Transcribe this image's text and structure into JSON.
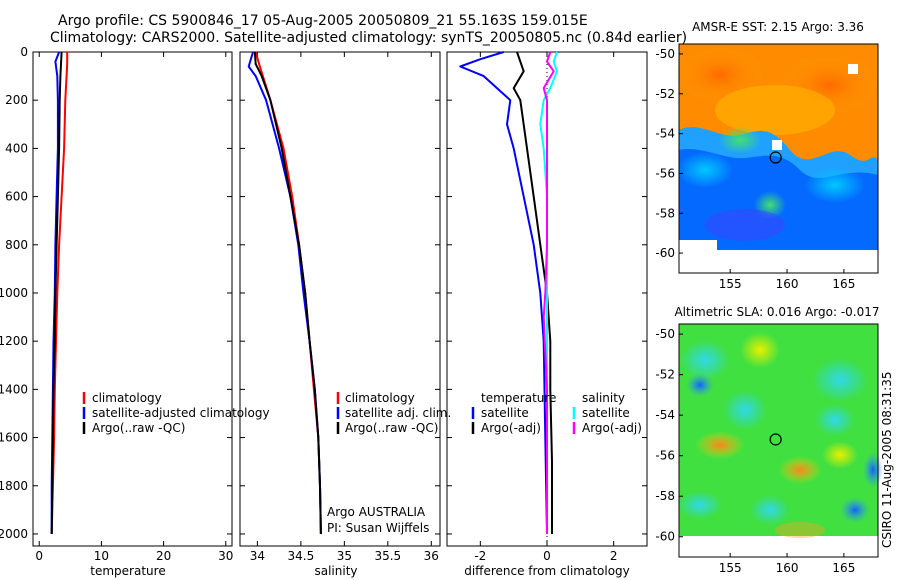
{
  "header": {
    "line1": "Argo profile: CS 5900846_17 05-Aug-2005 20050809_21 55.163S 159.015E",
    "line2": "Climatology: CARS2000. Satellite-adjusted climatology: synTS_20050805.nc (0.84d earlier)"
  },
  "side_text": "CSIRO 11-Aug-2005 08:31:35",
  "colors": {
    "climatology": "#ff0000",
    "satellite": "#0000ff",
    "argo": "#000000",
    "satellite_salinity": "#00ffff",
    "argo_salinity_adj": "#ff00ff"
  },
  "chart_data": [
    {
      "id": "temperature",
      "type": "line",
      "xlabel": "temperature",
      "xlim": [
        -1,
        31
      ],
      "ylim": [
        0,
        2050
      ],
      "y_inverted": true,
      "xticks": [
        0,
        10,
        20,
        30
      ],
      "yticks": [
        0,
        200,
        400,
        600,
        800,
        1000,
        1200,
        1400,
        1600,
        1800,
        2000
      ],
      "legend": {
        "placement": "lower-right",
        "entries": [
          "climatology",
          "satellite-adjusted climatology",
          "Argo(..raw -QC)"
        ]
      },
      "series": [
        {
          "name": "climatology",
          "color": "#ff0000",
          "x": [
            4.5,
            4.5,
            4.2,
            4.0,
            3.6,
            3.2,
            2.9,
            2.7,
            2.5,
            2.4,
            2.3,
            2.2,
            2.1,
            2.0
          ],
          "y": [
            0,
            50,
            200,
            400,
            600,
            800,
            1000,
            1200,
            1400,
            1600,
            1700,
            1800,
            1900,
            2000
          ]
        },
        {
          "name": "satellite-adjusted climatology",
          "color": "#0000ff",
          "x": [
            3.2,
            2.6,
            2.9,
            3.0,
            3.0,
            2.8,
            2.6,
            2.5,
            2.3,
            2.2,
            2.1,
            2.0,
            2.0
          ],
          "y": [
            0,
            40,
            100,
            200,
            400,
            600,
            800,
            1000,
            1200,
            1400,
            1600,
            1800,
            2000
          ]
        },
        {
          "name": "Argo(..raw -QC)",
          "color": "#000000",
          "x": [
            3.6,
            3.4,
            3.3,
            3.2,
            3.0,
            2.8,
            2.6,
            2.5,
            2.3,
            2.2,
            2.1,
            2.0
          ],
          "y": [
            0,
            100,
            200,
            400,
            600,
            800,
            1000,
            1200,
            1400,
            1600,
            1800,
            2000
          ]
        }
      ]
    },
    {
      "id": "salinity",
      "type": "line",
      "xlabel": "salinity",
      "xlim": [
        33.8,
        36.1
      ],
      "ylim": [
        0,
        2050
      ],
      "y_inverted": true,
      "xticks": [
        34,
        34.5,
        35,
        35.5,
        36
      ],
      "legend": {
        "placement": "lower-right",
        "entries": [
          "climatology",
          "satellite adj. clim.",
          "Argo(..raw -QC)"
        ]
      },
      "annotations": [
        "Argo AUSTRALIA",
        "PI: Susan Wijffels"
      ],
      "series": [
        {
          "name": "climatology",
          "color": "#ff0000",
          "x": [
            33.98,
            34.02,
            34.15,
            34.3,
            34.4,
            34.48,
            34.55,
            34.6,
            34.65,
            34.7,
            34.72,
            34.73
          ],
          "y": [
            0,
            50,
            200,
            400,
            600,
            800,
            1000,
            1200,
            1400,
            1600,
            1800,
            2000
          ]
        },
        {
          "name": "satellite adj. clim.",
          "color": "#0000ff",
          "x": [
            33.95,
            33.9,
            33.98,
            34.1,
            34.25,
            34.38,
            34.47,
            34.53,
            34.6,
            34.66,
            34.7,
            34.72,
            34.73
          ],
          "y": [
            0,
            60,
            100,
            200,
            400,
            600,
            800,
            1000,
            1200,
            1400,
            1600,
            1800,
            2000
          ]
        },
        {
          "name": "Argo(..raw -QC)",
          "color": "#000000",
          "x": [
            33.97,
            33.98,
            34.05,
            34.15,
            34.28,
            34.38,
            34.48,
            34.55,
            34.6,
            34.66,
            34.7,
            34.72,
            34.73
          ],
          "y": [
            0,
            50,
            100,
            200,
            400,
            600,
            800,
            1000,
            1200,
            1400,
            1600,
            1800,
            2000
          ]
        }
      ]
    },
    {
      "id": "difference",
      "type": "line",
      "xlabel": "difference from climatology",
      "xlim": [
        -3,
        3
      ],
      "ylim": [
        0,
        2050
      ],
      "y_inverted": true,
      "xticks": [
        -2,
        0,
        2
      ],
      "legend": {
        "placement": "lower",
        "entries": [
          "temperature",
          "satellite",
          "Argo(-adj)",
          "salinity",
          "satellite",
          "Argo(-adj)"
        ]
      },
      "series": [
        {
          "name": "temperature satellite",
          "color": "#0000ff",
          "x": [
            -1.3,
            -2.0,
            -2.6,
            -1.9,
            -1.1,
            -1.2,
            -1.0,
            -0.7,
            -0.4,
            -0.2,
            -0.1,
            -0.05,
            0.0
          ],
          "y": [
            0,
            30,
            60,
            100,
            200,
            300,
            400,
            600,
            800,
            1000,
            1200,
            1600,
            2000
          ]
        },
        {
          "name": "temperature Argo(-adj)",
          "color": "#000000",
          "x": [
            -0.9,
            -0.7,
            -1.0,
            -0.8,
            -0.6,
            -0.4,
            -0.2,
            0.0,
            0.1,
            0.1,
            0.15,
            0.15
          ],
          "y": [
            0,
            80,
            150,
            200,
            400,
            600,
            800,
            1000,
            1200,
            1400,
            1700,
            2000
          ]
        },
        {
          "name": "salinity satellite",
          "color": "#00ffff",
          "x": [
            0.3,
            0.2,
            0.3,
            0.1,
            -0.1,
            -0.2,
            -0.1,
            0.0,
            0.0,
            0.0,
            0.0
          ],
          "y": [
            0,
            40,
            80,
            150,
            200,
            300,
            400,
            600,
            1000,
            1500,
            2000
          ]
        },
        {
          "name": "salinity Argo(-adj)",
          "color": "#ff00ff",
          "x": [
            0.1,
            0.0,
            0.2,
            -0.1,
            0.0,
            0.0,
            0.0,
            0.0,
            -0.05,
            -0.1,
            0.0,
            0.0
          ],
          "y": [
            0,
            40,
            80,
            150,
            200,
            400,
            600,
            800,
            1000,
            1100,
            1400,
            2000
          ]
        }
      ]
    },
    {
      "id": "amsre-map",
      "type": "heatmap",
      "title": "AMSR-E SST: 2.15 Argo: 3.36",
      "xlim": [
        150.5,
        168
      ],
      "ylim": [
        -61,
        -49.5
      ],
      "xticks": [
        155,
        160,
        165
      ],
      "yticks": [
        -50,
        -52,
        -54,
        -56,
        -58,
        -60
      ],
      "profile_location": {
        "lon": 159.0,
        "lat": -55.2
      }
    },
    {
      "id": "sla-map",
      "type": "heatmap",
      "title": "Altimetric SLA: 0.016 Argo: -0.017",
      "xlim": [
        150.5,
        168
      ],
      "ylim": [
        -61,
        -49.5
      ],
      "xticks": [
        155,
        160,
        165
      ],
      "yticks": [
        -50,
        -52,
        -54,
        -56,
        -58,
        -60
      ],
      "profile_location": {
        "lon": 159.0,
        "lat": -55.2
      }
    }
  ]
}
